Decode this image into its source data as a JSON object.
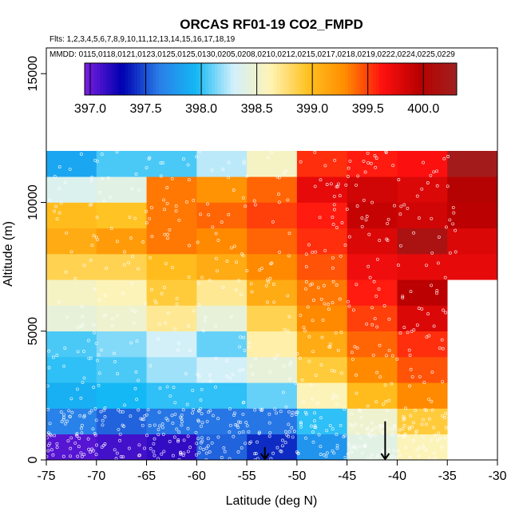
{
  "chart_data": {
    "type": "heatmap",
    "title": "ORCAS RF01-19 CO2_FMPD",
    "flights_note": "Flts: 1,2,3,4,5,6,7,8,9,10,11,12,13,14,15,16,17,18,19",
    "dates_note": "MMDD: 0115,0118,0121,0123,0125,0125,0130,0205,0208,0210,0212,0215,0217,0218,0219,0222,0224,0225,0229",
    "xlabel": "Latitude (deg N)",
    "ylabel": "Altitude (m)",
    "xlim": [
      -75,
      -30
    ],
    "ylim": [
      0,
      16000
    ],
    "x_ticks": [
      -75,
      -70,
      -65,
      -60,
      -55,
      -50,
      -45,
      -40,
      -35,
      -30
    ],
    "x_tick_labels": [
      "-75",
      "-70",
      "-65",
      "-60",
      "-55",
      "-50",
      "-45",
      "-40",
      "-35",
      "-30"
    ],
    "y_ticks": [
      0,
      5000,
      10000,
      15000
    ],
    "y_tick_labels": [
      "0",
      "5000",
      "10000",
      "15000"
    ],
    "colorbar": {
      "range": [
        396.95,
        400.3
      ],
      "ticks": [
        397.0,
        397.5,
        398.0,
        398.5,
        399.0,
        399.5,
        400.0
      ],
      "tick_labels": [
        "397.0",
        "397.5",
        "398.0",
        "398.5",
        "399.0",
        "399.5",
        "400.0"
      ],
      "colors": [
        "#7b1ee0",
        "#0000b0",
        "#2a7de8",
        "#14b9f5",
        "#d2f0fb",
        "#fff3b4",
        "#ffc220",
        "#ff8c00",
        "#ff1010",
        "#b80000",
        "#a02020"
      ]
    },
    "lat_bins": [
      -75,
      -70,
      -65,
      -60,
      -55,
      -50,
      -45,
      -40,
      -35,
      -30
    ],
    "alt_bins": [
      0,
      1000,
      2000,
      3000,
      4000,
      5000,
      6000,
      7000,
      8000,
      9000,
      10000,
      11000,
      12000
    ],
    "values": [
      [
        397.05,
        397.1,
        397.15,
        397.55,
        397.4,
        397.75,
        398.4,
        398.6,
        null
      ],
      [
        397.65,
        397.55,
        397.6,
        397.6,
        397.6,
        398.0,
        398.5,
        398.9,
        null
      ],
      [
        397.9,
        397.95,
        398.0,
        398.0,
        398.1,
        398.6,
        399.0,
        399.3,
        null
      ],
      [
        398.0,
        398.05,
        398.2,
        398.3,
        398.45,
        398.9,
        399.3,
        399.45,
        null
      ],
      [
        398.05,
        398.15,
        398.3,
        398.1,
        398.65,
        399.1,
        399.4,
        399.55,
        null
      ],
      [
        398.45,
        398.5,
        398.7,
        398.45,
        398.85,
        399.3,
        399.5,
        399.8,
        null
      ],
      [
        398.55,
        398.6,
        398.9,
        398.7,
        399.1,
        399.35,
        399.6,
        399.95,
        null
      ],
      [
        398.85,
        398.85,
        399.0,
        399.1,
        399.3,
        399.45,
        399.7,
        399.75,
        399.75
      ],
      [
        399.1,
        399.2,
        399.35,
        399.3,
        399.4,
        399.55,
        399.8,
        400.15,
        399.8
      ],
      [
        399.0,
        398.95,
        399.35,
        399.4,
        399.5,
        399.6,
        399.9,
        399.85,
        399.95
      ],
      [
        398.35,
        398.4,
        399.35,
        399.25,
        399.4,
        399.75,
        399.85,
        399.8,
        400.0
      ],
      [
        397.85,
        398.05,
        398.05,
        398.25,
        398.55,
        399.55,
        399.6,
        399.65,
        400.25
      ]
    ],
    "markers": [
      {
        "lat": -53.2,
        "alt_top": 500,
        "alt_bottom": 0
      },
      {
        "lat": -41.2,
        "alt_top": 1500,
        "alt_bottom": 0
      }
    ]
  }
}
